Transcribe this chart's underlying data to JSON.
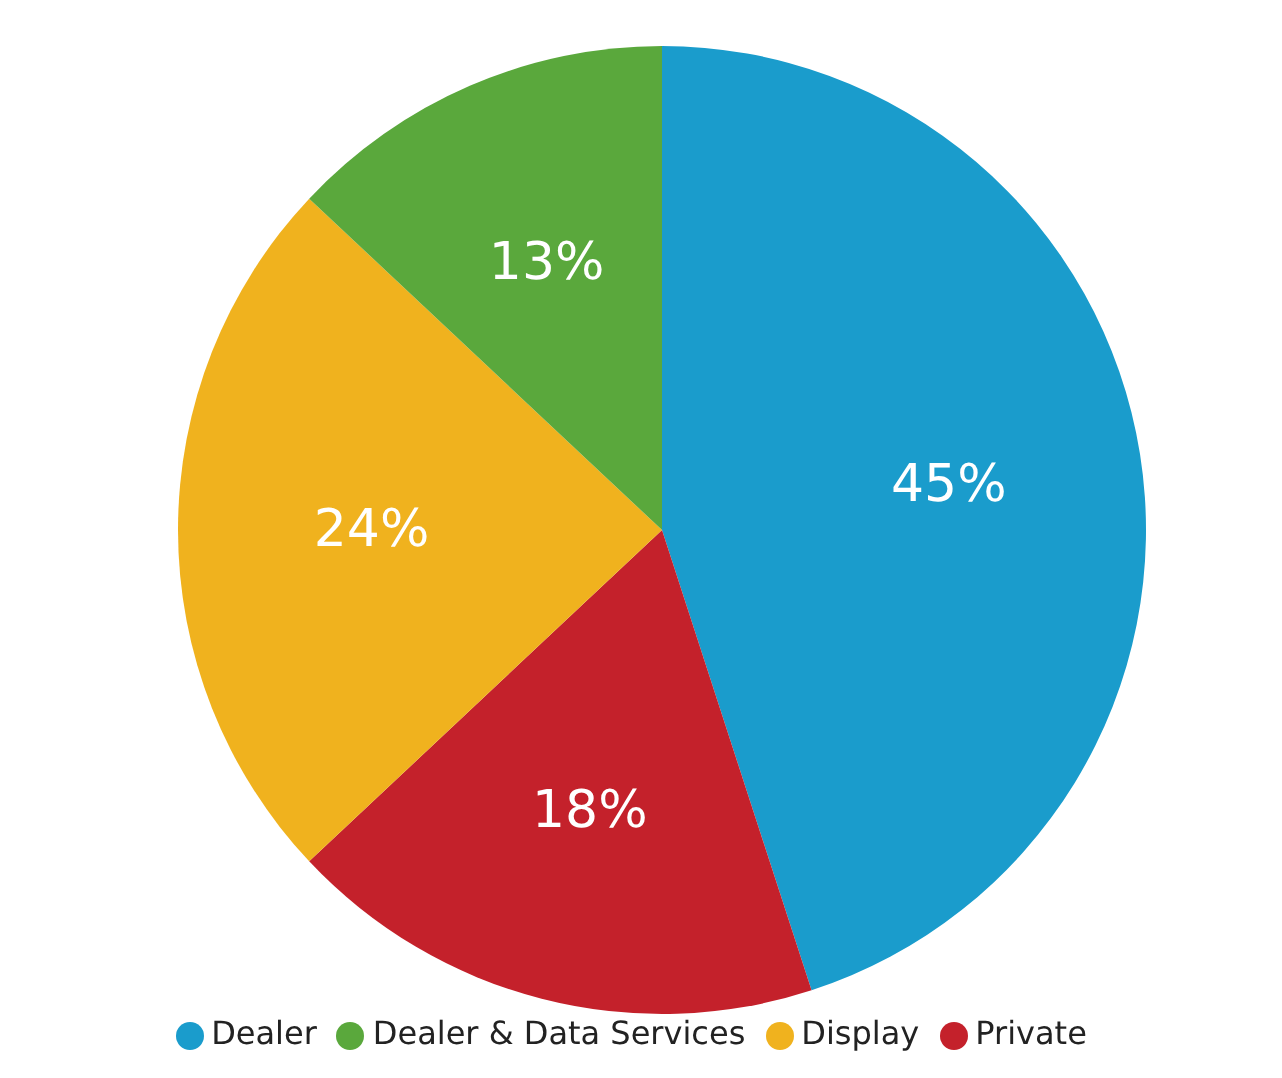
{
  "chart_data": {
    "type": "pie",
    "categories": [
      "Dealer",
      "Private",
      "Display",
      "Dealer & Data Services"
    ],
    "values": [
      45,
      18,
      24,
      13
    ],
    "value_labels": [
      "45%",
      "18%",
      "24%",
      "13%"
    ],
    "colors": [
      "#1a9ccc",
      "#c4212b",
      "#f0b21e",
      "#5aa83c"
    ],
    "legend": "bottom"
  }
}
